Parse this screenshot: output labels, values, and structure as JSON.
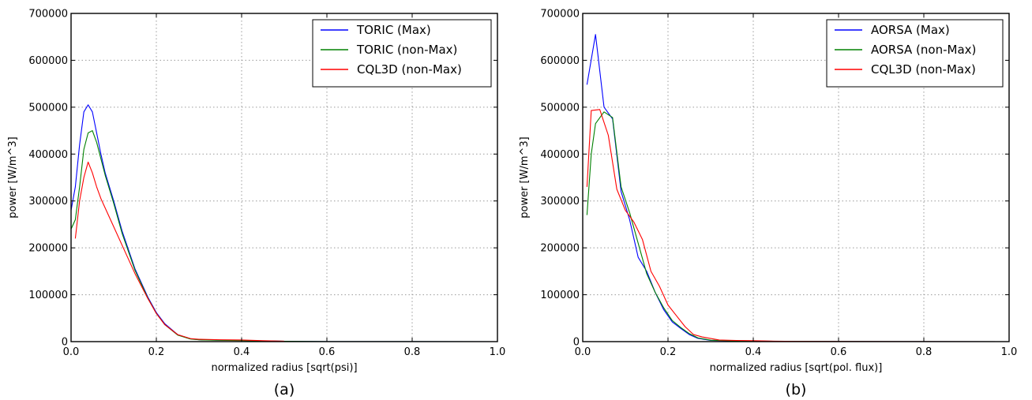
{
  "chart_data": [
    {
      "type": "line",
      "caption": "(a)",
      "xlabel": "normalized radius [sqrt(psi)]",
      "ylabel": "power [W/m^3]",
      "xlim": [
        0,
        1.0
      ],
      "ylim": [
        0,
        700000
      ],
      "xticks": [
        "0.0",
        "0.2",
        "0.4",
        "0.6",
        "0.8",
        "1.0"
      ],
      "yticks": [
        "0",
        "100000",
        "200000",
        "300000",
        "400000",
        "500000",
        "600000",
        "700000"
      ],
      "grid": true,
      "legend_position": "top-right",
      "series": [
        {
          "name": "TORIC (Max)",
          "color": "#0000ff",
          "x": [
            0.0,
            0.01,
            0.02,
            0.03,
            0.04,
            0.05,
            0.06,
            0.07,
            0.08,
            0.1,
            0.12,
            0.15,
            0.18,
            0.2,
            0.22,
            0.25,
            0.28,
            0.3,
            0.35,
            0.4,
            0.45,
            0.5,
            0.6,
            0.8,
            1.0
          ],
          "y": [
            280000,
            330000,
            420000,
            490000,
            505000,
            490000,
            445000,
            400000,
            360000,
            300000,
            235000,
            155000,
            95000,
            62000,
            38000,
            15000,
            6000,
            4000,
            3000,
            2500,
            1500,
            800,
            200,
            50,
            0
          ]
        },
        {
          "name": "TORIC (non-Max)",
          "color": "#008000",
          "x": [
            0.0,
            0.01,
            0.02,
            0.03,
            0.04,
            0.05,
            0.06,
            0.07,
            0.08,
            0.1,
            0.12,
            0.15,
            0.18,
            0.2,
            0.22,
            0.25,
            0.28,
            0.3,
            0.35,
            0.4,
            0.45,
            0.5,
            0.6,
            0.8,
            1.0
          ],
          "y": [
            240000,
            260000,
            330000,
            410000,
            445000,
            450000,
            425000,
            390000,
            355000,
            295000,
            230000,
            152000,
            93000,
            60000,
            36000,
            14000,
            5500,
            3800,
            2800,
            2200,
            1300,
            700,
            200,
            50,
            0
          ]
        },
        {
          "name": "CQL3D (non-Max)",
          "color": "#ff0000",
          "x": [
            0.01,
            0.02,
            0.03,
            0.04,
            0.05,
            0.06,
            0.07,
            0.08,
            0.1,
            0.12,
            0.15,
            0.18,
            0.2,
            0.22,
            0.25,
            0.28,
            0.3,
            0.35,
            0.4,
            0.45,
            0.5
          ],
          "y": [
            220000,
            300000,
            350000,
            383000,
            360000,
            330000,
            305000,
            285000,
            245000,
            205000,
            145000,
            92000,
            60000,
            36000,
            15000,
            6500,
            5000,
            4000,
            3500,
            2000,
            1000
          ]
        }
      ]
    },
    {
      "type": "line",
      "caption": "(b)",
      "xlabel": "normalized radius [sqrt(pol. flux)]",
      "ylabel": "power [W/m^3]",
      "xlim": [
        0,
        1.0
      ],
      "ylim": [
        0,
        700000
      ],
      "xticks": [
        "0.0",
        "0.2",
        "0.4",
        "0.6",
        "0.8",
        "1.0"
      ],
      "yticks": [
        "0",
        "100000",
        "200000",
        "300000",
        "400000",
        "500000",
        "600000",
        "700000"
      ],
      "grid": true,
      "legend_position": "top-right",
      "series": [
        {
          "name": "AORSA (Max)",
          "color": "#0000ff",
          "x": [
            0.01,
            0.03,
            0.05,
            0.07,
            0.09,
            0.11,
            0.13,
            0.15,
            0.17,
            0.19,
            0.21,
            0.23,
            0.25,
            0.27,
            0.3,
            0.35,
            0.4,
            0.5,
            0.6,
            0.8,
            1.0
          ],
          "y": [
            548000,
            655000,
            500000,
            475000,
            320000,
            260000,
            180000,
            150000,
            105000,
            68000,
            42000,
            28000,
            15000,
            7000,
            2500,
            1500,
            1000,
            500,
            300,
            100,
            0
          ]
        },
        {
          "name": "AORSA (non-Max)",
          "color": "#008000",
          "x": [
            0.01,
            0.02,
            0.03,
            0.05,
            0.07,
            0.09,
            0.11,
            0.13,
            0.15,
            0.17,
            0.19,
            0.21,
            0.23,
            0.25,
            0.27,
            0.3,
            0.35,
            0.4,
            0.5,
            0.6,
            0.8,
            1.0
          ],
          "y": [
            270000,
            400000,
            465000,
            490000,
            478000,
            330000,
            275000,
            210000,
            145000,
            105000,
            72000,
            45000,
            30000,
            17000,
            8000,
            3000,
            1800,
            1000,
            500,
            300,
            100,
            0
          ]
        },
        {
          "name": "CQL3D (non-Max)",
          "color": "#ff0000",
          "x": [
            0.01,
            0.02,
            0.04,
            0.06,
            0.08,
            0.1,
            0.12,
            0.14,
            0.16,
            0.18,
            0.2,
            0.22,
            0.24,
            0.26,
            0.28,
            0.32,
            0.36,
            0.4,
            0.45,
            0.5,
            0.6,
            0.8,
            1.0
          ],
          "y": [
            330000,
            493000,
            495000,
            440000,
            325000,
            280000,
            255000,
            218000,
            150000,
            118000,
            78000,
            55000,
            32000,
            15000,
            10000,
            3500,
            2500,
            2000,
            1000,
            500,
            300,
            100,
            0
          ]
        }
      ]
    }
  ]
}
